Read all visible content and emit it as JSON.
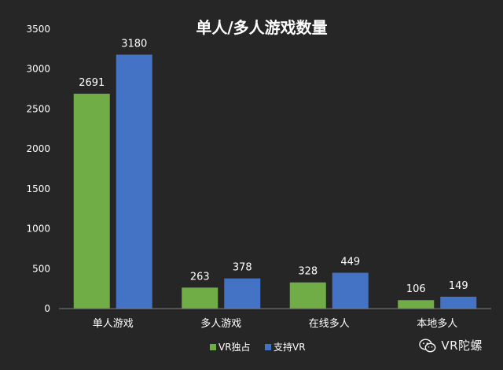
{
  "chart_data": {
    "type": "bar",
    "title": "单人/多人游戏数量",
    "categories": [
      "单人游戏",
      "多人游戏",
      "在线多人",
      "本地多人"
    ],
    "series": [
      {
        "name": "VR独占",
        "color": "#70ad47",
        "values": [
          2691,
          263,
          328,
          106
        ]
      },
      {
        "name": "支持VR",
        "color": "#4472c4",
        "values": [
          3180,
          378,
          449,
          149
        ]
      }
    ],
    "ylim": [
      0,
      3500
    ],
    "yticks": [
      0,
      500,
      1000,
      1500,
      2000,
      2500,
      3000,
      3500
    ],
    "grid": false,
    "legend": "bottom",
    "data_labels": true
  },
  "watermark": {
    "text": "VR陀螺",
    "icon": "wechat-icon"
  },
  "colors": {
    "background": "#262626",
    "axis": "#7f7f7f",
    "text": "#ffffff"
  }
}
